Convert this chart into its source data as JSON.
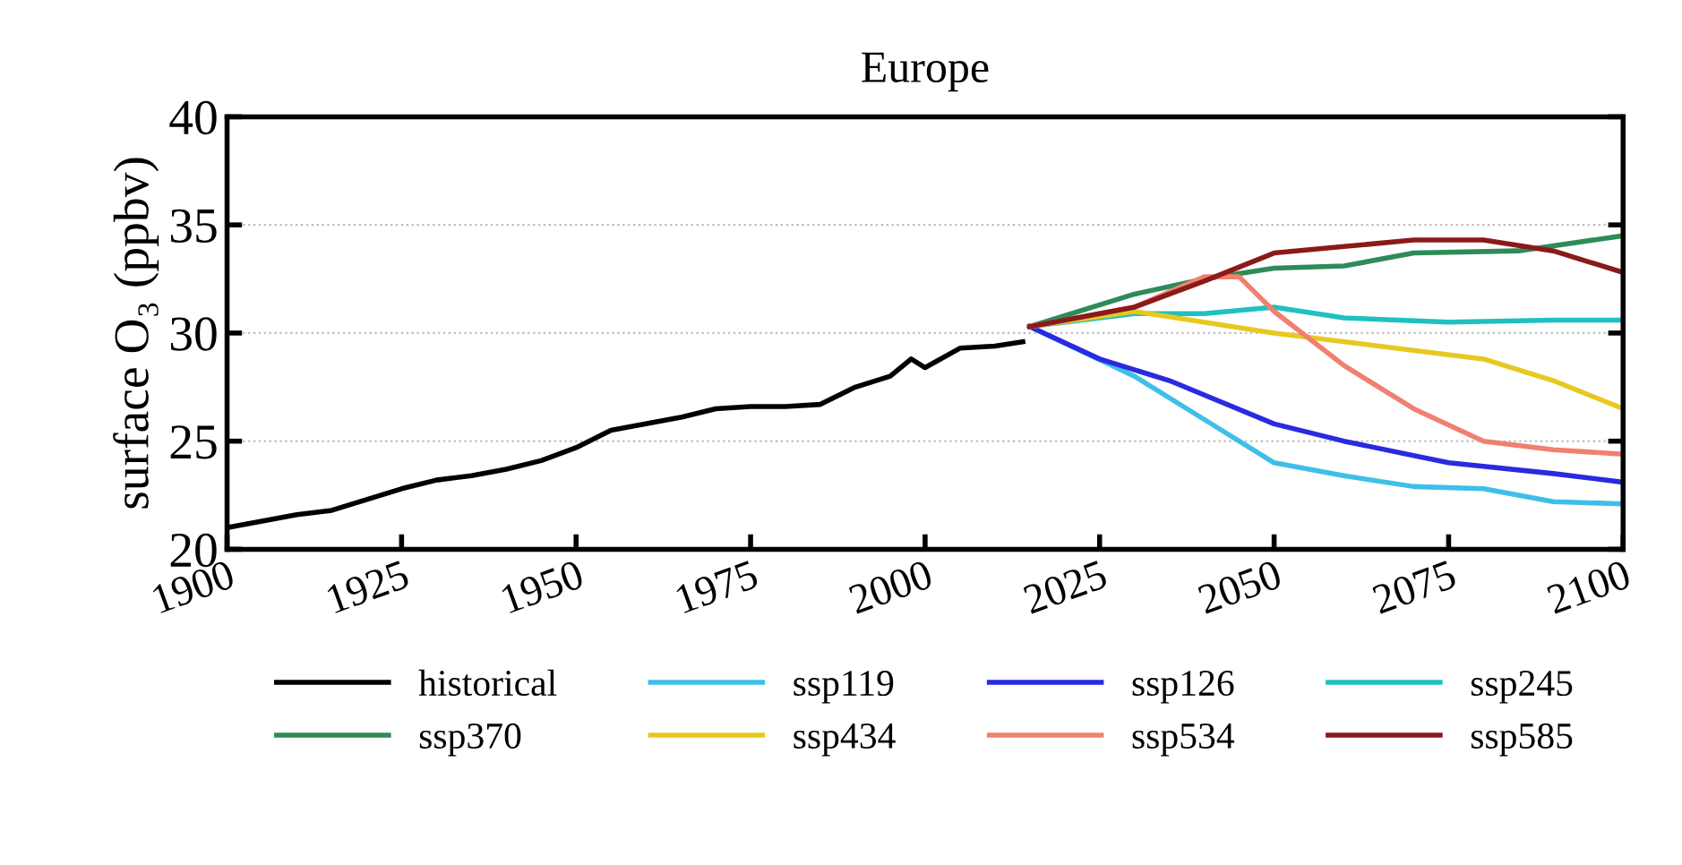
{
  "chart_data": {
    "type": "line",
    "title": "Europe",
    "ylabel": "surface O₃ (ppbv)",
    "xlim": [
      1900,
      2100
    ],
    "xticks": [
      1900,
      1925,
      1950,
      1975,
      2000,
      2025,
      2050,
      2075,
      2100
    ],
    "ylim": [
      20,
      40
    ],
    "yticks": [
      20,
      25,
      30,
      35,
      40
    ],
    "grid": "y",
    "legend": "bottom",
    "series": [
      {
        "name": "historical",
        "color": "#000000",
        "x": [
          1900,
          1905,
          1910,
          1915,
          1920,
          1925,
          1930,
          1935,
          1940,
          1945,
          1950,
          1955,
          1960,
          1965,
          1970,
          1975,
          1980,
          1985,
          1990,
          1995,
          1998,
          2000,
          2005,
          2010,
          2014
        ],
        "values": [
          21.0,
          21.3,
          21.6,
          21.8,
          22.3,
          22.8,
          23.2,
          23.4,
          23.7,
          24.1,
          24.7,
          25.5,
          25.8,
          26.1,
          26.5,
          26.6,
          26.6,
          26.7,
          27.5,
          28.0,
          28.8,
          28.4,
          29.3,
          29.4,
          29.6
        ]
      },
      {
        "name": "ssp119",
        "color": "#3fbfe8",
        "x": [
          2015,
          2030,
          2040,
          2050,
          2060,
          2070,
          2080,
          2090,
          2100
        ],
        "values": [
          30.3,
          28.0,
          26.0,
          24.0,
          23.4,
          22.9,
          22.8,
          22.2,
          22.1
        ]
      },
      {
        "name": "ssp126",
        "color": "#2a2ae0",
        "x": [
          2015,
          2025,
          2035,
          2050,
          2060,
          2075,
          2090,
          2100
        ],
        "values": [
          30.3,
          28.8,
          27.8,
          25.8,
          25.0,
          24.0,
          23.5,
          23.1
        ]
      },
      {
        "name": "ssp245",
        "color": "#20c0c0",
        "x": [
          2015,
          2030,
          2040,
          2050,
          2060,
          2075,
          2090,
          2100
        ],
        "values": [
          30.3,
          30.9,
          30.9,
          31.2,
          30.7,
          30.5,
          30.6,
          30.6
        ]
      },
      {
        "name": "ssp370",
        "color": "#2e8b57",
        "x": [
          2015,
          2030,
          2040,
          2050,
          2060,
          2070,
          2085,
          2100
        ],
        "values": [
          30.3,
          31.8,
          32.5,
          33.0,
          33.1,
          33.7,
          33.8,
          34.5
        ]
      },
      {
        "name": "ssp434",
        "color": "#e8c820",
        "x": [
          2015,
          2030,
          2050,
          2065,
          2080,
          2090,
          2100
        ],
        "values": [
          30.3,
          31.0,
          30.0,
          29.4,
          28.8,
          27.8,
          26.5
        ]
      },
      {
        "name": "ssp534",
        "color": "#f08070",
        "x": [
          2015,
          2030,
          2040,
          2045,
          2050,
          2060,
          2070,
          2080,
          2090,
          2100
        ],
        "values": [
          30.3,
          31.2,
          32.6,
          32.6,
          31.0,
          28.5,
          26.5,
          25.0,
          24.6,
          24.4
        ]
      },
      {
        "name": "ssp585",
        "color": "#8b1a1a",
        "x": [
          2015,
          2030,
          2040,
          2050,
          2060,
          2070,
          2080,
          2090,
          2100
        ],
        "values": [
          30.3,
          31.2,
          32.4,
          33.7,
          34.0,
          34.3,
          34.3,
          33.8,
          32.8
        ]
      }
    ]
  }
}
